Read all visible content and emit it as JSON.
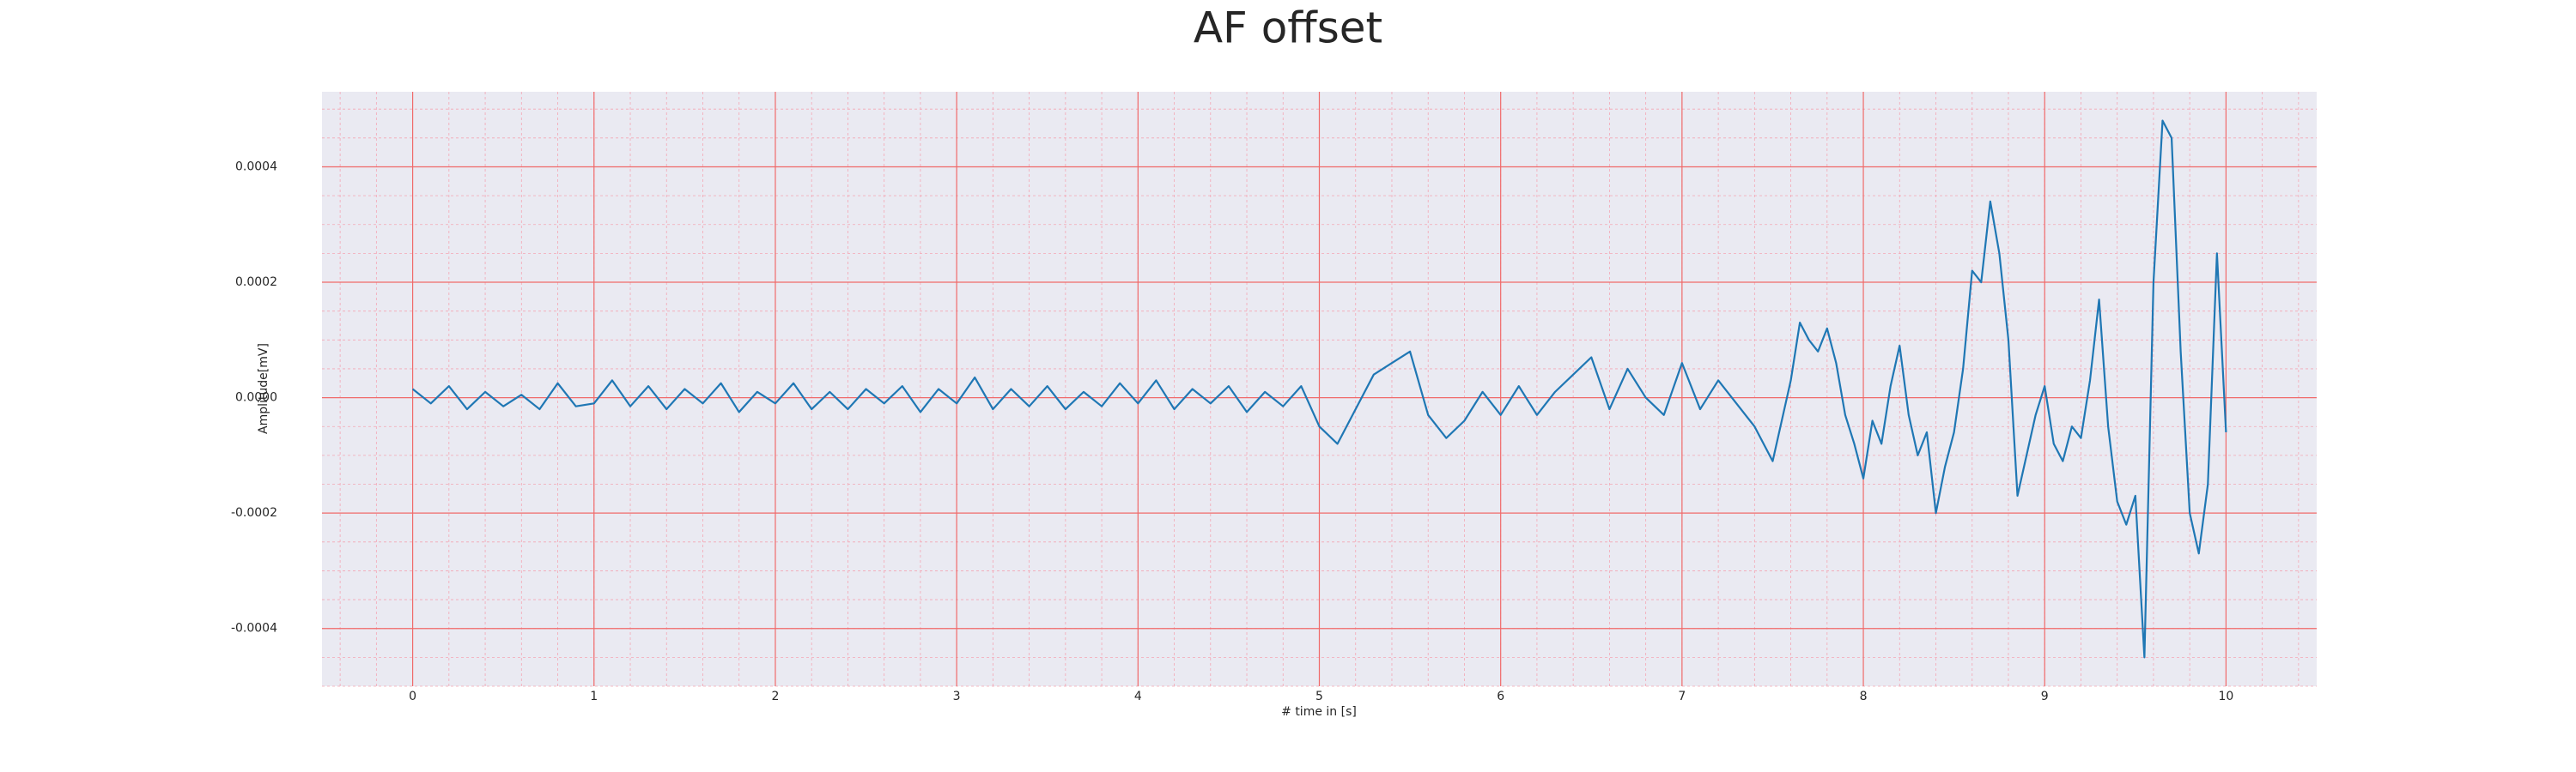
{
  "chart_data": {
    "type": "line",
    "title": "AF offset",
    "xlabel": "# time in [s]",
    "ylabel": "Amplitude[mV]",
    "grid": true,
    "minor_grid": true,
    "xlim": [
      -0.5,
      10.5
    ],
    "ylim": [
      -0.0005,
      0.00053
    ],
    "xticks": [
      0,
      1,
      2,
      3,
      4,
      5,
      6,
      7,
      8,
      9,
      10
    ],
    "yticks": [
      -0.0004,
      -0.0002,
      {
        "value": 0,
        "label": "0.0000"
      },
      0.0002,
      0.0004
    ],
    "x": [
      0,
      0.1,
      0.2,
      0.3,
      0.4,
      0.5,
      0.6,
      0.7,
      0.8,
      0.9,
      1,
      1.1,
      1.2,
      1.3,
      1.4,
      1.5,
      1.6,
      1.7,
      1.8,
      1.9,
      2,
      2.1,
      2.2,
      2.3,
      2.4,
      2.5,
      2.6,
      2.7,
      2.8,
      2.9,
      3,
      3.1,
      3.2,
      3.3,
      3.4,
      3.5,
      3.6,
      3.7,
      3.8,
      3.9,
      4,
      4.1,
      4.2,
      4.3,
      4.4,
      4.5,
      4.6,
      4.7,
      4.8,
      4.9,
      5,
      5.1,
      5.2,
      5.3,
      5.4,
      5.5,
      5.6,
      5.7,
      5.8,
      5.9,
      6,
      6.1,
      6.2,
      6.3,
      6.4,
      6.5,
      6.6,
      6.7,
      6.8,
      6.9,
      7,
      7.1,
      7.2,
      7.3,
      7.4,
      7.5,
      7.55,
      7.6,
      7.65,
      7.7,
      7.75,
      7.8,
      7.85,
      7.9,
      7.95,
      8,
      8.05,
      8.1,
      8.15,
      8.2,
      8.25,
      8.3,
      8.35,
      8.4,
      8.45,
      8.5,
      8.55,
      8.6,
      8.65,
      8.7,
      8.75,
      8.8,
      8.85,
      8.9,
      8.95,
      9,
      9.05,
      9.1,
      9.15,
      9.2,
      9.25,
      9.3,
      9.35,
      9.4,
      9.45,
      9.5,
      9.55,
      9.6,
      9.65,
      9.7,
      9.75,
      9.8,
      9.85,
      9.9,
      9.95,
      10
    ],
    "series": [
      {
        "name": "AF offset",
        "color": "#1f77b4",
        "values": [
          1.5e-05,
          -1e-05,
          2e-05,
          -2e-05,
          1e-05,
          -1.5e-05,
          5e-06,
          -2e-05,
          2.5e-05,
          -1.5e-05,
          -1e-05,
          3e-05,
          -1.5e-05,
          2e-05,
          -2e-05,
          1.5e-05,
          -1e-05,
          2.5e-05,
          -2.5e-05,
          1e-05,
          -1e-05,
          2.5e-05,
          -2e-05,
          1e-05,
          -2e-05,
          1.5e-05,
          -1e-05,
          2e-05,
          -2.5e-05,
          1.5e-05,
          -1e-05,
          3.5e-05,
          -2e-05,
          1.5e-05,
          -1.5e-05,
          2e-05,
          -2e-05,
          1e-05,
          -1.5e-05,
          2.5e-05,
          -1e-05,
          3e-05,
          -2e-05,
          1.5e-05,
          -1e-05,
          2e-05,
          -2.5e-05,
          1e-05,
          -1.5e-05,
          2e-05,
          -5e-05,
          -8e-05,
          -2e-05,
          4e-05,
          6e-05,
          8e-05,
          -3e-05,
          -7e-05,
          -4e-05,
          1e-05,
          -3e-05,
          2e-05,
          -3e-05,
          1e-05,
          4e-05,
          7e-05,
          -2e-05,
          5e-05,
          0,
          -3e-05,
          6e-05,
          -2e-05,
          3e-05,
          -1e-05,
          -5e-05,
          -0.00011,
          -4e-05,
          3e-05,
          0.00013,
          0.0001,
          8e-05,
          0.00012,
          6e-05,
          -3e-05,
          -8e-05,
          -0.00014,
          -4e-05,
          -8e-05,
          2e-05,
          9e-05,
          -3e-05,
          -0.0001,
          -6e-05,
          -0.0002,
          -0.00012,
          -6e-05,
          5e-05,
          0.00022,
          0.0002,
          0.00034,
          0.00025,
          0.0001,
          -0.00017,
          -0.0001,
          -3e-05,
          2e-05,
          -8e-05,
          -0.00011,
          -5e-05,
          -7e-05,
          3e-05,
          0.00017,
          -5e-05,
          -0.00018,
          -0.00022,
          -0.00017,
          -0.00045,
          0.0002,
          0.00048,
          0.00045,
          8e-05,
          -0.0002,
          -0.00027,
          -0.00015,
          0.00025,
          -6e-05
        ]
      }
    ]
  }
}
